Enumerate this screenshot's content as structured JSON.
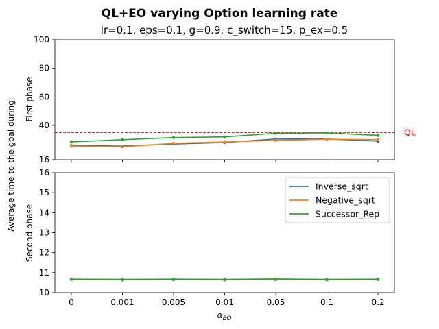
{
  "figure": {
    "suptitle": "QL+EO varying Option learning rate",
    "subtitle": "lr=0.1, eps=0.1, g=0.9, c_switch=15, p_ex=0.5",
    "shared_ylabel": "Average time to the goal during:",
    "xlabel": "α_EO",
    "xlabel_main": "α",
    "xlabel_sub": "EO"
  },
  "chart_data": [
    {
      "type": "line",
      "ylabel": "First phase",
      "categories": [
        "0",
        "0.001",
        "0.005",
        "0.01",
        "0.05",
        "0.1",
        "0.2"
      ],
      "ylim": [
        16,
        100
      ],
      "yticks": [
        16,
        40,
        60,
        80,
        100
      ],
      "grid": false,
      "reference_line": {
        "label": "QL",
        "value": 35,
        "color": "#ff0000",
        "style": "dashed"
      },
      "series": [
        {
          "name": "Inverse_sqrt",
          "color": "#1f77b4",
          "values": [
            26,
            25.5,
            27,
            28,
            30.5,
            30.5,
            29
          ]
        },
        {
          "name": "Negative_sqrt",
          "color": "#ff7f0e",
          "values": [
            25.5,
            25,
            27.5,
            28.5,
            29.5,
            30.3,
            30
          ]
        },
        {
          "name": "Successor_Rep",
          "color": "#2ca02c",
          "values": [
            28.5,
            30,
            31.5,
            32,
            34.5,
            34.8,
            33
          ]
        }
      ]
    },
    {
      "type": "line",
      "ylabel": "Second phase",
      "categories": [
        "0",
        "0.001",
        "0.005",
        "0.01",
        "0.05",
        "0.1",
        "0.2"
      ],
      "xlabel": "α_EO",
      "ylim": [
        10,
        16
      ],
      "yticks": [
        10,
        11,
        12,
        13,
        14,
        15,
        16
      ],
      "grid": false,
      "legend": "top-right",
      "series": [
        {
          "name": "Inverse_sqrt",
          "color": "#1f77b4",
          "values": [
            10.66,
            10.64,
            10.65,
            10.64,
            10.65,
            10.64,
            10.66
          ]
        },
        {
          "name": "Negative_sqrt",
          "color": "#ff7f0e",
          "values": [
            10.67,
            10.66,
            10.67,
            10.66,
            10.67,
            10.66,
            10.67
          ]
        },
        {
          "name": "Successor_Rep",
          "color": "#2ca02c",
          "values": [
            10.68,
            10.67,
            10.68,
            10.67,
            10.69,
            10.67,
            10.68
          ]
        }
      ]
    }
  ]
}
